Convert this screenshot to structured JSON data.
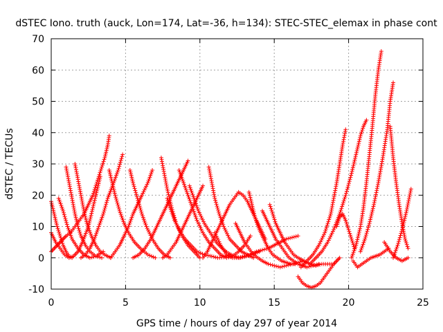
{
  "chart_data": {
    "type": "scatter",
    "title": "dSTEC Iono. truth (auck, Lon=174, Lat=-36, h=134): STEC-STEC_elemax in phase cont",
    "xlabel": "GPS time / hours of day 297 of year 2014",
    "ylabel": "dSTEC  / TECUs",
    "xlim": [
      0,
      25
    ],
    "ylim": [
      -10,
      70
    ],
    "xticks": [
      0,
      5,
      10,
      15,
      20,
      25
    ],
    "yticks": [
      -10,
      0,
      10,
      20,
      30,
      40,
      50,
      60,
      70
    ],
    "grid": true,
    "marker": "plus",
    "color": "#ff0000",
    "series": [
      {
        "x": [
          0.0,
          0.2,
          0.4,
          0.6,
          0.8,
          1.0,
          1.3,
          1.6,
          1.9,
          2.2,
          2.5,
          2.8,
          3.0,
          3.2,
          3.4,
          3.6,
          3.8,
          3.9
        ],
        "y": [
          2,
          3,
          4,
          5,
          6,
          7,
          8,
          10,
          12,
          14,
          17,
          20,
          23,
          26,
          29,
          32,
          36,
          39
        ]
      },
      {
        "x": [
          0.0,
          0.2,
          0.4,
          0.6,
          0.8,
          1.0,
          1.2,
          1.4
        ],
        "y": [
          18,
          14,
          10,
          7,
          4,
          2,
          0.5,
          0
        ]
      },
      {
        "x": [
          0.0,
          0.3,
          0.6,
          0.9,
          1.2,
          1.5,
          1.8,
          2.1,
          2.5,
          2.8,
          3.1,
          3.3
        ],
        "y": [
          8,
          5,
          3,
          1,
          0,
          0.5,
          2,
          5,
          10,
          16,
          22,
          26
        ]
      },
      {
        "x": [
          0.5,
          0.8,
          1.1,
          1.4,
          1.8,
          2.2,
          2.6,
          3.0,
          3.5
        ],
        "y": [
          19,
          15,
          10,
          6,
          3,
          1,
          0,
          0.5,
          2
        ]
      },
      {
        "x": [
          1.0,
          1.2,
          1.4,
          1.6,
          1.8,
          2.0,
          2.3,
          2.6,
          3.0,
          3.4
        ],
        "y": [
          29,
          24,
          19,
          14,
          10,
          7,
          4,
          2,
          0.5,
          0
        ]
      },
      {
        "x": [
          1.6,
          1.8,
          2.0,
          2.2,
          2.4,
          2.7,
          3.0,
          3.3,
          3.6,
          4.0
        ],
        "y": [
          30,
          25,
          20,
          15,
          11,
          7,
          4,
          2,
          1,
          0
        ]
      },
      {
        "x": [
          2.0,
          2.3,
          2.6,
          2.9,
          3.2,
          3.5,
          3.8,
          4.2,
          4.5,
          4.8
        ],
        "y": [
          0,
          1,
          3,
          6,
          10,
          14,
          19,
          24,
          28,
          33
        ]
      },
      {
        "x": [
          3.9,
          4.1,
          4.3,
          4.6,
          4.9,
          5.2,
          5.6,
          6.0,
          6.5,
          7.0
        ],
        "y": [
          28,
          24,
          20,
          15,
          11,
          8,
          5,
          3,
          1,
          0
        ]
      },
      {
        "x": [
          4.0,
          4.3,
          4.6,
          4.9,
          5.2,
          5.5,
          5.8,
          6.1,
          6.5,
          6.8
        ],
        "y": [
          0,
          2,
          4,
          7,
          10,
          14,
          17,
          20,
          24,
          28
        ]
      },
      {
        "x": [
          5.3,
          5.5,
          5.8,
          6.1,
          6.4,
          6.8,
          7.2,
          7.6,
          8.0
        ],
        "y": [
          28,
          24,
          19,
          14,
          10,
          6,
          3,
          1,
          0
        ]
      },
      {
        "x": [
          5.5,
          5.9,
          6.3,
          6.7,
          7.0,
          7.3,
          7.6,
          7.9,
          8.2,
          8.5,
          8.8,
          9.0,
          9.2
        ],
        "y": [
          0,
          1,
          3,
          6,
          9,
          12,
          15,
          18,
          21,
          24,
          27,
          29,
          31
        ]
      },
      {
        "x": [
          7.4,
          7.6,
          7.8,
          8.1,
          8.4,
          8.8,
          9.2,
          9.6,
          10.0
        ],
        "y": [
          32,
          27,
          22,
          16,
          11,
          7,
          4,
          2,
          0
        ]
      },
      {
        "x": [
          7.5,
          7.8,
          8.1,
          8.4,
          8.7,
          9.0,
          9.3,
          9.6,
          9.9,
          10.2
        ],
        "y": [
          0,
          1,
          3,
          5,
          8,
          11,
          14,
          17,
          20,
          23
        ]
      },
      {
        "x": [
          7.8,
          8.0,
          8.3,
          8.6,
          9.0,
          9.4,
          9.8,
          10.3,
          10.8,
          11.2,
          11.6,
          12.0
        ],
        "y": [
          19,
          16,
          12,
          9,
          6,
          4,
          2,
          1,
          0.5,
          0,
          0.2,
          1
        ]
      },
      {
        "x": [
          8.6,
          8.9,
          9.2,
          9.5,
          9.8,
          10.2,
          10.6,
          11.0,
          11.4,
          11.8,
          12.2,
          12.6,
          13.0,
          13.4
        ],
        "y": [
          28,
          24,
          20,
          16,
          12,
          8,
          5,
          3,
          1,
          0,
          0.5,
          2,
          4,
          7
        ]
      },
      {
        "x": [
          9.3,
          9.6,
          9.9,
          10.3,
          10.7,
          11.1,
          11.5,
          11.9,
          12.3,
          12.7,
          13.1,
          13.5,
          14.0
        ],
        "y": [
          23,
          19,
          15,
          11,
          8,
          5,
          3,
          1.5,
          0.5,
          0,
          0.5,
          1,
          2
        ]
      },
      {
        "x": [
          10.6,
          10.8,
          11.0,
          11.3,
          11.6,
          12.0,
          12.4,
          12.8,
          13.2,
          13.6
        ],
        "y": [
          29,
          24,
          19,
          14,
          10,
          6,
          4,
          2,
          1,
          0
        ]
      },
      {
        "x": [
          10.2,
          10.5,
          10.8,
          11.1,
          11.4,
          11.7,
          12.0,
          12.3,
          12.6,
          12.9,
          13.2,
          13.5,
          13.8,
          14.1,
          14.4
        ],
        "y": [
          0,
          2,
          5,
          8,
          11,
          14,
          17,
          19,
          21,
          20,
          18,
          15,
          12,
          9,
          6
        ]
      },
      {
        "x": [
          11.0,
          11.4,
          11.8,
          12.2,
          12.6,
          13.0,
          13.4,
          13.8,
          14.2,
          14.6,
          15.0,
          15.4,
          15.8,
          16.2,
          16.6
        ],
        "y": [
          8,
          4,
          1,
          0,
          0,
          0.5,
          1,
          2,
          2.5,
          3,
          4,
          5,
          6,
          6.5,
          7
        ]
      },
      {
        "x": [
          12.4,
          12.7,
          13.0,
          13.3,
          13.6,
          13.9,
          14.2,
          14.6,
          15.0,
          15.4,
          15.8,
          16.2,
          16.6,
          17.0
        ],
        "y": [
          11,
          8,
          5,
          3,
          1,
          0,
          -1,
          -2,
          -2.5,
          -3,
          -2.5,
          -2,
          -1.5,
          -1
        ]
      },
      {
        "x": [
          13.3,
          13.5,
          13.7,
          14.0,
          14.3,
          14.6,
          14.9,
          15.2,
          15.5,
          15.8,
          16.1,
          16.4
        ],
        "y": [
          21,
          17,
          13,
          9,
          6,
          3,
          1,
          0,
          -1,
          -1.5,
          -2,
          -2
        ]
      },
      {
        "x": [
          14.2,
          14.5,
          14.8,
          15.1,
          15.4,
          15.7,
          16.0,
          16.3,
          16.6,
          16.9,
          17.2,
          17.6,
          18.0
        ],
        "y": [
          15,
          12,
          9,
          6,
          4,
          2,
          0,
          -1,
          -2,
          -2.5,
          -3,
          -2.5,
          -2
        ]
      },
      {
        "x": [
          14.7,
          14.9,
          15.1,
          15.4,
          15.7,
          16.0,
          16.3,
          16.6,
          17.0,
          17.4,
          17.8,
          18.2,
          18.6,
          19.0
        ],
        "y": [
          17,
          14,
          11,
          8,
          5,
          3,
          1,
          0,
          -1,
          -2,
          -2.5,
          -2,
          -2,
          -2
        ]
      },
      {
        "x": [
          16.6,
          16.9,
          17.2,
          17.5,
          17.8,
          18.1,
          18.4,
          18.7,
          19.0,
          19.2,
          19.4
        ],
        "y": [
          -6,
          -8,
          -9,
          -9.5,
          -9,
          -8,
          -6,
          -4,
          -2,
          -1,
          0
        ]
      },
      {
        "x": [
          16.8,
          17.2,
          17.6,
          18.0,
          18.4,
          18.8,
          19.0,
          19.2,
          19.4,
          19.6,
          19.8
        ],
        "y": [
          -3,
          -1,
          1,
          4,
          8,
          14,
          19,
          24,
          30,
          36,
          41
        ]
      },
      {
        "x": [
          17.4,
          17.8,
          18.2,
          18.6,
          19.0,
          19.4,
          19.8,
          20.2,
          20.5,
          20.8,
          21.0,
          21.2
        ],
        "y": [
          -2,
          0,
          2,
          5,
          9,
          14,
          20,
          27,
          33,
          39,
          42,
          44
        ]
      },
      {
        "x": [
          19.2,
          19.4,
          19.6,
          19.8,
          20.0,
          20.2,
          20.4
        ],
        "y": [
          10,
          13,
          14,
          12,
          9,
          6,
          3
        ]
      },
      {
        "x": [
          20.2,
          20.5,
          20.8,
          21.0,
          21.2,
          21.4,
          21.6,
          21.8,
          22.0,
          22.2
        ],
        "y": [
          0,
          4,
          10,
          16,
          24,
          33,
          42,
          52,
          60,
          66
        ]
      },
      {
        "x": [
          20.3,
          20.6,
          20.9,
          21.2,
          21.5,
          21.8,
          22.1,
          22.4,
          22.7
        ],
        "y": [
          -1,
          -3,
          -2,
          -1,
          0,
          0.5,
          1,
          2,
          3
        ]
      },
      {
        "x": [
          20.8,
          21.1,
          21.4,
          21.7,
          22.0,
          22.3,
          22.6,
          22.8,
          23.0
        ],
        "y": [
          2,
          6,
          11,
          17,
          24,
          32,
          41,
          50,
          56
        ]
      },
      {
        "x": [
          22.8,
          23.0,
          23.2,
          23.4,
          23.6,
          23.8,
          24.0
        ],
        "y": [
          42,
          32,
          24,
          17,
          11,
          6,
          3
        ]
      },
      {
        "x": [
          22.4,
          22.8,
          23.2,
          23.6,
          24.0
        ],
        "y": [
          5,
          2,
          0,
          -1,
          0
        ]
      },
      {
        "x": [
          23.0,
          23.3,
          23.6,
          23.9,
          24.2
        ],
        "y": [
          0,
          4,
          9,
          15,
          22
        ]
      }
    ]
  }
}
